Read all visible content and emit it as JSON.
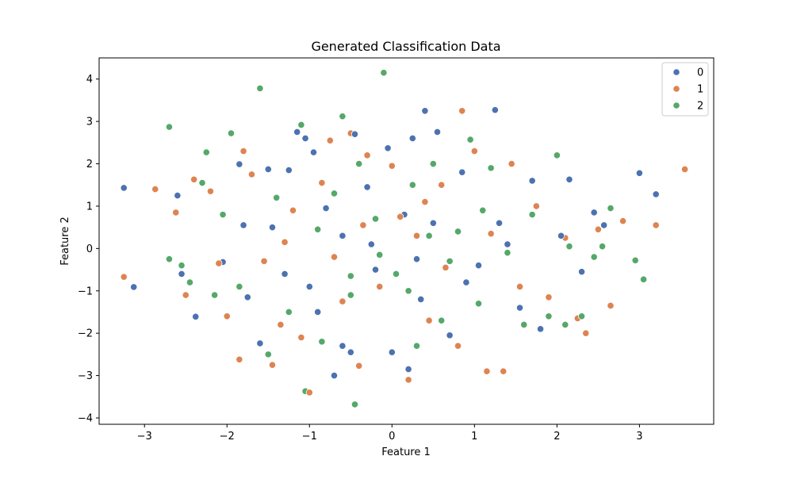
{
  "chart_data": {
    "type": "scatter",
    "title": "Generated Classification Data",
    "xlabel": "Feature 1",
    "ylabel": "Feature 2",
    "xlim": [
      -3.55,
      3.9
    ],
    "ylim": [
      -4.15,
      4.5
    ],
    "xticks": [
      -3,
      -2,
      -1,
      0,
      1,
      2,
      3
    ],
    "yticks": [
      -4,
      -3,
      -2,
      -1,
      0,
      1,
      2,
      3,
      4
    ],
    "xtick_labels": [
      "−3",
      "−2",
      "−1",
      "0",
      "1",
      "2",
      "3"
    ],
    "ytick_labels": [
      "−4",
      "−3",
      "−2",
      "−1",
      "0",
      "1",
      "2",
      "3",
      "4"
    ],
    "grid": false,
    "legend_position": "top-right",
    "series": [
      {
        "name": "0",
        "color": "#4c72b0",
        "points": [
          [
            -3.25,
            1.43
          ],
          [
            -3.13,
            -0.91
          ],
          [
            -2.6,
            1.25
          ],
          [
            -2.55,
            -0.6
          ],
          [
            -2.38,
            -1.61
          ],
          [
            -2.05,
            -0.32
          ],
          [
            -1.85,
            1.99
          ],
          [
            -1.8,
            0.55
          ],
          [
            -1.75,
            -1.15
          ],
          [
            -1.6,
            -2.24
          ],
          [
            -1.5,
            1.87
          ],
          [
            -1.45,
            0.5
          ],
          [
            -1.3,
            -0.6
          ],
          [
            -1.25,
            1.85
          ],
          [
            -1.15,
            2.75
          ],
          [
            -1.05,
            2.6
          ],
          [
            -0.95,
            2.27
          ],
          [
            -0.9,
            -1.5
          ],
          [
            -0.8,
            0.95
          ],
          [
            -0.7,
            -3.0
          ],
          [
            -0.6,
            -2.3
          ],
          [
            -0.5,
            -2.45
          ],
          [
            -0.45,
            2.7
          ],
          [
            -0.3,
            1.45
          ],
          [
            -0.2,
            -0.5
          ],
          [
            -0.05,
            2.37
          ],
          [
            0.0,
            -2.45
          ],
          [
            0.15,
            0.8
          ],
          [
            0.2,
            -2.85
          ],
          [
            0.25,
            2.6
          ],
          [
            0.35,
            -1.2
          ],
          [
            0.4,
            3.25
          ],
          [
            0.55,
            2.75
          ],
          [
            0.7,
            -2.05
          ],
          [
            0.85,
            1.8
          ],
          [
            1.05,
            -0.4
          ],
          [
            1.25,
            3.27
          ],
          [
            1.3,
            0.6
          ],
          [
            1.55,
            -1.4
          ],
          [
            1.7,
            1.6
          ],
          [
            1.8,
            -1.9
          ],
          [
            2.05,
            0.3
          ],
          [
            2.15,
            1.63
          ],
          [
            2.3,
            -0.55
          ],
          [
            2.45,
            0.85
          ],
          [
            2.57,
            0.55
          ],
          [
            3.0,
            1.78
          ],
          [
            3.2,
            1.28
          ],
          [
            -0.25,
            0.1
          ],
          [
            0.3,
            -0.25
          ],
          [
            0.5,
            0.6
          ],
          [
            -0.6,
            0.3
          ],
          [
            0.9,
            -0.8
          ],
          [
            -1.0,
            -0.9
          ],
          [
            1.4,
            0.1
          ]
        ]
      },
      {
        "name": "1",
        "color": "#dd8452",
        "points": [
          [
            -3.25,
            -0.67
          ],
          [
            -2.87,
            1.4
          ],
          [
            -2.62,
            0.85
          ],
          [
            -2.5,
            -1.1
          ],
          [
            -2.4,
            1.63
          ],
          [
            -2.2,
            1.35
          ],
          [
            -2.1,
            -0.35
          ],
          [
            -2.0,
            -1.6
          ],
          [
            -1.85,
            -2.62
          ],
          [
            -1.8,
            2.3
          ],
          [
            -1.7,
            1.75
          ],
          [
            -1.55,
            -0.3
          ],
          [
            -1.45,
            -2.75
          ],
          [
            -1.35,
            -1.8
          ],
          [
            -1.2,
            0.9
          ],
          [
            -1.1,
            -2.1
          ],
          [
            -1.0,
            -3.4
          ],
          [
            -0.85,
            1.55
          ],
          [
            -0.75,
            2.55
          ],
          [
            -0.6,
            -1.25
          ],
          [
            -0.5,
            2.72
          ],
          [
            -0.4,
            -2.77
          ],
          [
            -0.3,
            2.2
          ],
          [
            -0.15,
            -0.9
          ],
          [
            0.0,
            1.95
          ],
          [
            0.2,
            -3.1
          ],
          [
            0.3,
            0.3
          ],
          [
            0.45,
            -1.7
          ],
          [
            0.6,
            1.5
          ],
          [
            0.8,
            -2.3
          ],
          [
            0.85,
            3.25
          ],
          [
            1.0,
            2.3
          ],
          [
            1.15,
            -2.9
          ],
          [
            1.35,
            -2.9
          ],
          [
            1.45,
            2.0
          ],
          [
            1.55,
            -0.9
          ],
          [
            1.75,
            1.0
          ],
          [
            1.9,
            -1.15
          ],
          [
            2.1,
            0.25
          ],
          [
            2.25,
            -1.65
          ],
          [
            2.35,
            -2.0
          ],
          [
            2.5,
            0.45
          ],
          [
            2.65,
            -1.35
          ],
          [
            2.8,
            0.65
          ],
          [
            3.2,
            0.55
          ],
          [
            3.55,
            1.87
          ],
          [
            -0.7,
            -0.2
          ],
          [
            0.1,
            0.75
          ],
          [
            0.65,
            -0.45
          ],
          [
            -0.35,
            0.55
          ],
          [
            1.2,
            0.35
          ],
          [
            -1.3,
            0.15
          ],
          [
            0.4,
            1.1
          ]
        ]
      },
      {
        "name": "2",
        "color": "#55a868",
        "points": [
          [
            -2.7,
            2.87
          ],
          [
            -2.7,
            -0.25
          ],
          [
            -2.55,
            -0.4
          ],
          [
            -2.45,
            -0.8
          ],
          [
            -2.3,
            1.55
          ],
          [
            -2.25,
            2.27
          ],
          [
            -2.15,
            -1.1
          ],
          [
            -2.05,
            0.8
          ],
          [
            -1.95,
            2.72
          ],
          [
            -1.85,
            -0.9
          ],
          [
            -1.6,
            3.78
          ],
          [
            -1.5,
            -2.5
          ],
          [
            -1.4,
            1.2
          ],
          [
            -1.25,
            -1.5
          ],
          [
            -1.1,
            2.92
          ],
          [
            -1.05,
            -3.37
          ],
          [
            -0.85,
            -2.2
          ],
          [
            -0.7,
            1.3
          ],
          [
            -0.6,
            3.12
          ],
          [
            -0.5,
            -1.1
          ],
          [
            -0.45,
            -3.68
          ],
          [
            -0.4,
            2.0
          ],
          [
            -0.2,
            0.7
          ],
          [
            -0.1,
            4.15
          ],
          [
            0.05,
            -0.6
          ],
          [
            0.25,
            1.5
          ],
          [
            0.3,
            -2.3
          ],
          [
            0.5,
            2.0
          ],
          [
            0.6,
            -1.7
          ],
          [
            0.8,
            0.4
          ],
          [
            0.95,
            2.57
          ],
          [
            1.05,
            -1.3
          ],
          [
            1.2,
            1.9
          ],
          [
            1.4,
            -0.1
          ],
          [
            1.6,
            -1.8
          ],
          [
            1.7,
            0.8
          ],
          [
            1.9,
            -1.6
          ],
          [
            2.0,
            2.2
          ],
          [
            2.1,
            -1.8
          ],
          [
            2.15,
            0.05
          ],
          [
            2.3,
            -1.6
          ],
          [
            2.45,
            -0.2
          ],
          [
            2.55,
            0.05
          ],
          [
            2.65,
            0.95
          ],
          [
            2.95,
            -0.28
          ],
          [
            3.05,
            -0.73
          ],
          [
            -0.15,
            -0.15
          ],
          [
            0.45,
            0.3
          ],
          [
            -0.9,
            0.45
          ],
          [
            0.7,
            -0.3
          ],
          [
            -0.5,
            -0.65
          ],
          [
            1.1,
            0.9
          ],
          [
            0.2,
            -1.0
          ]
        ]
      }
    ]
  }
}
